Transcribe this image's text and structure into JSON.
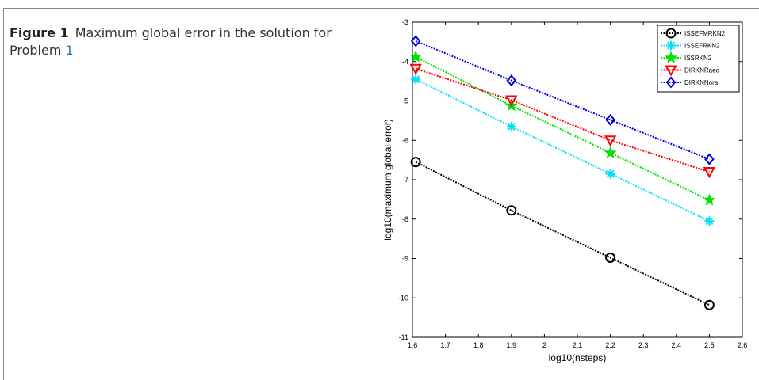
{
  "caption": {
    "label": "Figure 1",
    "text": "Maximum global error in the solution for Problem",
    "ref": "1"
  },
  "chart_data": {
    "type": "line",
    "xlabel": "log10(nsteps)",
    "ylabel": "log10(maximum global error)",
    "xlim": [
      1.6,
      2.6
    ],
    "ylim": [
      -11,
      -3
    ],
    "xticks": [
      "1.6",
      "1.7",
      "1.8",
      "1.9",
      "2",
      "2.1",
      "2.2",
      "2.3",
      "2.4",
      "2.5",
      "2.6"
    ],
    "yticks": [
      "-3",
      "-4",
      "-5",
      "-6",
      "-7",
      "-8",
      "-9",
      "-10",
      "-11"
    ],
    "legend_position": "top-right",
    "grid": false,
    "x": [
      1.61,
      1.9,
      2.2,
      2.5
    ],
    "series": [
      {
        "name": "ISSEFMRKN2",
        "values": [
          -6.55,
          -7.78,
          -8.98,
          -10.18
        ],
        "color": "#000000",
        "marker": "circle"
      },
      {
        "name": "ISSEFRKN2",
        "values": [
          -4.45,
          -5.65,
          -6.85,
          -8.05
        ],
        "color": "#00e0f0",
        "marker": "asterisk"
      },
      {
        "name": "ISSRKN2",
        "values": [
          -3.88,
          -5.12,
          -6.32,
          -7.52
        ],
        "color": "#00e000",
        "marker": "star"
      },
      {
        "name": "DIRKNRaed",
        "values": [
          -4.18,
          -4.98,
          -6.0,
          -6.8
        ],
        "color": "#ff0000",
        "marker": "triangle-down"
      },
      {
        "name": "DIRKNNora",
        "values": [
          -3.48,
          -4.48,
          -5.48,
          -6.48
        ],
        "color": "#0000e0",
        "marker": "diamond"
      }
    ]
  }
}
